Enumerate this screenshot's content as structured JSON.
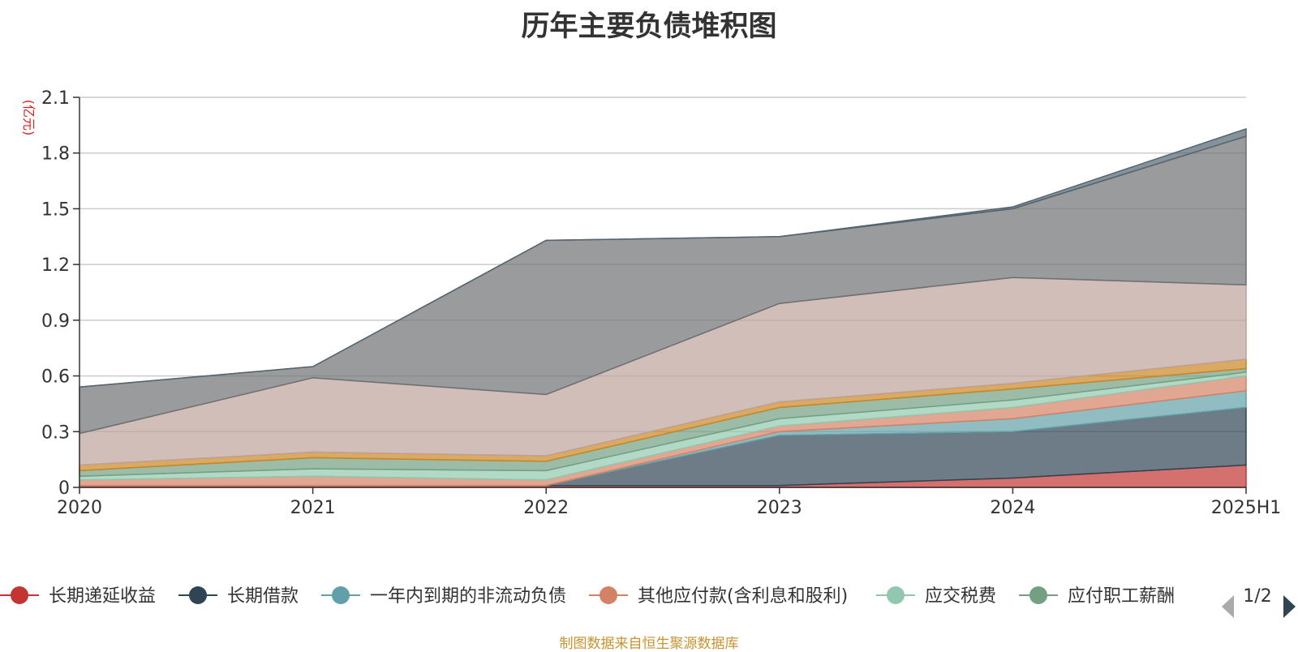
{
  "chart_data": {
    "type": "area",
    "title": "历年主要负债堆积图",
    "unit": "(亿元)",
    "x": [
      "2020",
      "2021",
      "2022",
      "2023",
      "2024",
      "2025H1"
    ],
    "yticks": [
      "0",
      "0.3",
      "0.6",
      "0.9",
      "1.2",
      "1.5",
      "1.8",
      "2.1"
    ],
    "ylim": [
      0,
      2.1
    ],
    "grid": true,
    "stacked": true,
    "series": [
      {
        "name": "长期递延收益",
        "color": "#c23531",
        "legend_color": "#c23531",
        "values": [
          0.01,
          0.01,
          0.01,
          0.01,
          0.05,
          0.12
        ]
      },
      {
        "name": "长期借款",
        "color": "#2f4554",
        "legend_color": "#2f4554",
        "values": [
          0,
          0,
          0,
          0.27,
          0.25,
          0.31
        ]
      },
      {
        "name": "一年内到期的非流动负债",
        "color": "#61a0a8",
        "legend_color": "#61a0a8",
        "values": [
          0,
          0,
          0,
          0.02,
          0.07,
          0.09
        ]
      },
      {
        "name": "其他应付款(含利息和股利)",
        "color": "#d48265",
        "legend_color": "#d48265",
        "values": [
          0.03,
          0.05,
          0.03,
          0.03,
          0.06,
          0.08
        ]
      },
      {
        "name": "应交税费",
        "color": "#91c7ae",
        "legend_color": "#91c7ae",
        "values": [
          0.02,
          0.04,
          0.05,
          0.04,
          0.04,
          0.02
        ]
      },
      {
        "name": "应付职工薪酬",
        "color": "#749f83",
        "legend_color": "#749f83",
        "values": [
          0.03,
          0.06,
          0.05,
          0.06,
          0.06,
          0.02
        ]
      },
      {
        "name": "",
        "color": "#ca8622",
        "values": [
          0.03,
          0.03,
          0.03,
          0.03,
          0.03,
          0.05
        ]
      },
      {
        "name": "",
        "color": "#bda29a",
        "values": [
          0.17,
          0.4,
          0.33,
          0.53,
          0.57,
          0.4
        ]
      },
      {
        "name": "",
        "color": "#6e7074",
        "values": [
          0.25,
          0.06,
          0.83,
          0.36,
          0.37,
          0.8
        ]
      },
      {
        "name": "",
        "color": "#546570",
        "values": [
          0,
          0,
          0,
          0,
          0.01,
          0.04
        ]
      }
    ]
  },
  "legend": {
    "page_indicator": "1/2",
    "prev_icon": "triangle-left-icon",
    "next_icon": "triangle-right-icon"
  },
  "source_note": "制图数据来自恒生聚源数据库"
}
